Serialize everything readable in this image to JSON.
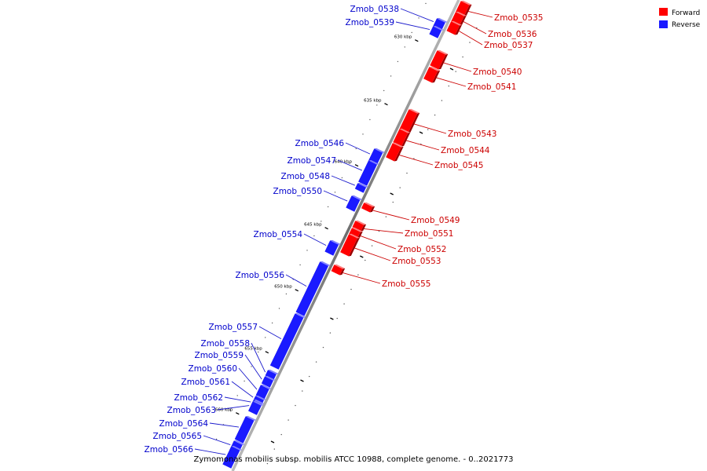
{
  "caption": "Zymomonas mobilis subsp. mobilis ATCC 10988, complete genome. - 0..2021773",
  "legend": [
    {
      "label": "Forward",
      "color": "#ff0000"
    },
    {
      "label": "Reverse",
      "color": "#1a1aff"
    }
  ],
  "ticks": [
    "630 kbp",
    "635 kbp",
    "640 kbp",
    "645 kbp",
    "650 kbp",
    "655 kbp",
    "660 kbp"
  ],
  "genes": [
    {
      "name": "Zmob_0535",
      "strand": "forward"
    },
    {
      "name": "Zmob_0536",
      "strand": "forward"
    },
    {
      "name": "Zmob_0537",
      "strand": "forward"
    },
    {
      "name": "Zmob_0538",
      "strand": "reverse"
    },
    {
      "name": "Zmob_0539",
      "strand": "reverse"
    },
    {
      "name": "Zmob_0540",
      "strand": "forward"
    },
    {
      "name": "Zmob_0541",
      "strand": "forward"
    },
    {
      "name": "Zmob_0543",
      "strand": "forward"
    },
    {
      "name": "Zmob_0544",
      "strand": "forward"
    },
    {
      "name": "Zmob_0545",
      "strand": "forward"
    },
    {
      "name": "Zmob_0546",
      "strand": "reverse"
    },
    {
      "name": "Zmob_0547",
      "strand": "reverse"
    },
    {
      "name": "Zmob_0548",
      "strand": "reverse"
    },
    {
      "name": "Zmob_0550",
      "strand": "reverse"
    },
    {
      "name": "Zmob_0549",
      "strand": "forward"
    },
    {
      "name": "Zmob_0551",
      "strand": "forward"
    },
    {
      "name": "Zmob_0552",
      "strand": "forward"
    },
    {
      "name": "Zmob_0553",
      "strand": "forward"
    },
    {
      "name": "Zmob_0554",
      "strand": "reverse"
    },
    {
      "name": "Zmob_0555",
      "strand": "forward"
    },
    {
      "name": "Zmob_0556",
      "strand": "reverse"
    },
    {
      "name": "Zmob_0557",
      "strand": "reverse"
    },
    {
      "name": "Zmob_0558",
      "strand": "reverse"
    },
    {
      "name": "Zmob_0559",
      "strand": "reverse"
    },
    {
      "name": "Zmob_0560",
      "strand": "reverse"
    },
    {
      "name": "Zmob_0561",
      "strand": "reverse"
    },
    {
      "name": "Zmob_0562",
      "strand": "reverse"
    },
    {
      "name": "Zmob_0563",
      "strand": "reverse"
    },
    {
      "name": "Zmob_0564",
      "strand": "reverse"
    },
    {
      "name": "Zmob_0565",
      "strand": "reverse"
    },
    {
      "name": "Zmob_0566",
      "strand": "reverse"
    }
  ]
}
